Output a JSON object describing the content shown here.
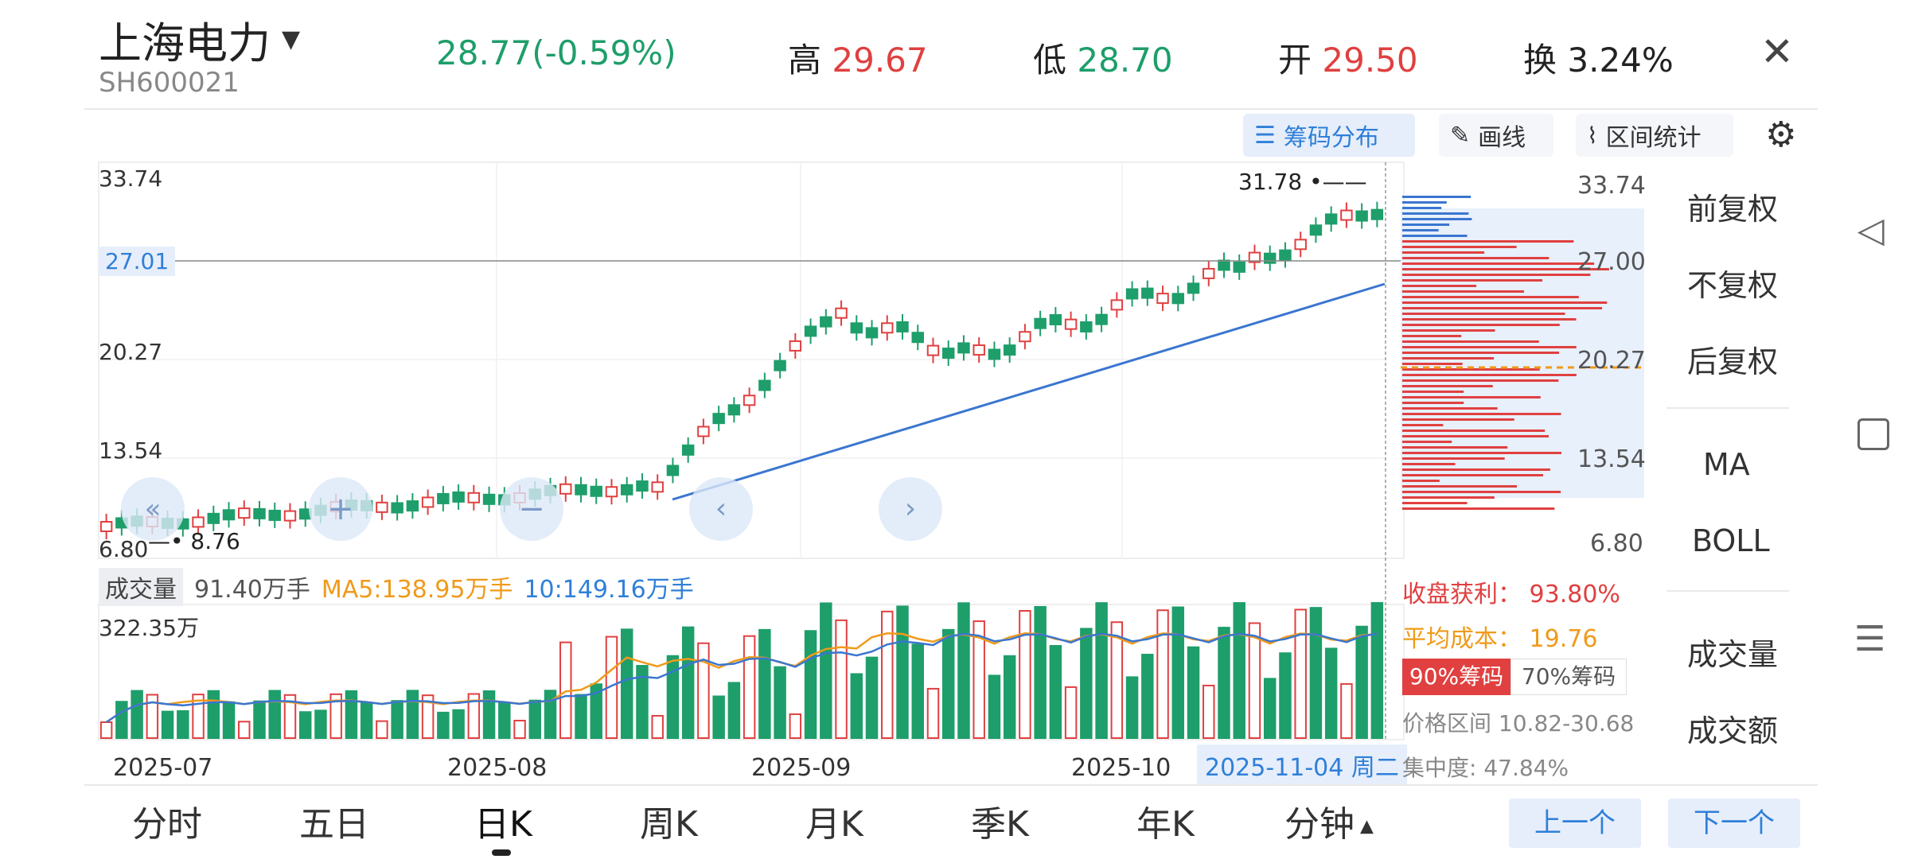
{
  "stock": {
    "name": "上海电力",
    "code": "SH600021",
    "price_change": "28.77(-0.59%)",
    "high_label": "高",
    "high": "29.67",
    "low_label": "低",
    "low": "28.70",
    "open_label": "开",
    "open": "29.50",
    "turnover_label": "换",
    "turnover": "3.24%"
  },
  "toolbar": {
    "chips_label": "筹码分布",
    "draw_label": "画线",
    "range_label": "区间统计"
  },
  "price_axis": {
    "left": [
      "33.74",
      "20.27",
      "13.54",
      "6.80"
    ],
    "crosshair": "27.01",
    "right": [
      "33.74",
      "27.00",
      "20.27",
      "13.54",
      "6.80"
    ]
  },
  "annotations": {
    "max": "31.78",
    "min": "8.76"
  },
  "volume": {
    "label": "成交量",
    "current": "91.40万手",
    "ma5": "MA5:138.95万手",
    "ma10": "10:149.16万手",
    "max": "322.35万"
  },
  "dates": [
    "2025-07",
    "2025-08",
    "2025-09",
    "2025-10"
  ],
  "crosshair_date": "2025-11-04 周二",
  "chip_stats": {
    "profit_label": "收盘获利：",
    "profit": "93.80%",
    "avg_label": "平均成本：",
    "avg": "19.76",
    "tab_90": "90%筹码",
    "tab_70": "70%筹码",
    "range_label": "价格区间",
    "range": "10.82-30.68",
    "conc_label": "集中度:",
    "conc": "47.84%"
  },
  "side_menu": [
    "前复权",
    "不复权",
    "后复权",
    "MA",
    "BOLL",
    "成交量",
    "成交额"
  ],
  "bottom_tabs": [
    "分时",
    "五日",
    "日K",
    "周K",
    "月K",
    "季K",
    "年K",
    "分钟"
  ],
  "nav": {
    "prev": "上一个",
    "next": "下一个"
  },
  "colors": {
    "up": "#e04040",
    "down": "#1e9e6a",
    "accent": "#2f7fd8",
    "ma5": "#f09a1a"
  }
}
